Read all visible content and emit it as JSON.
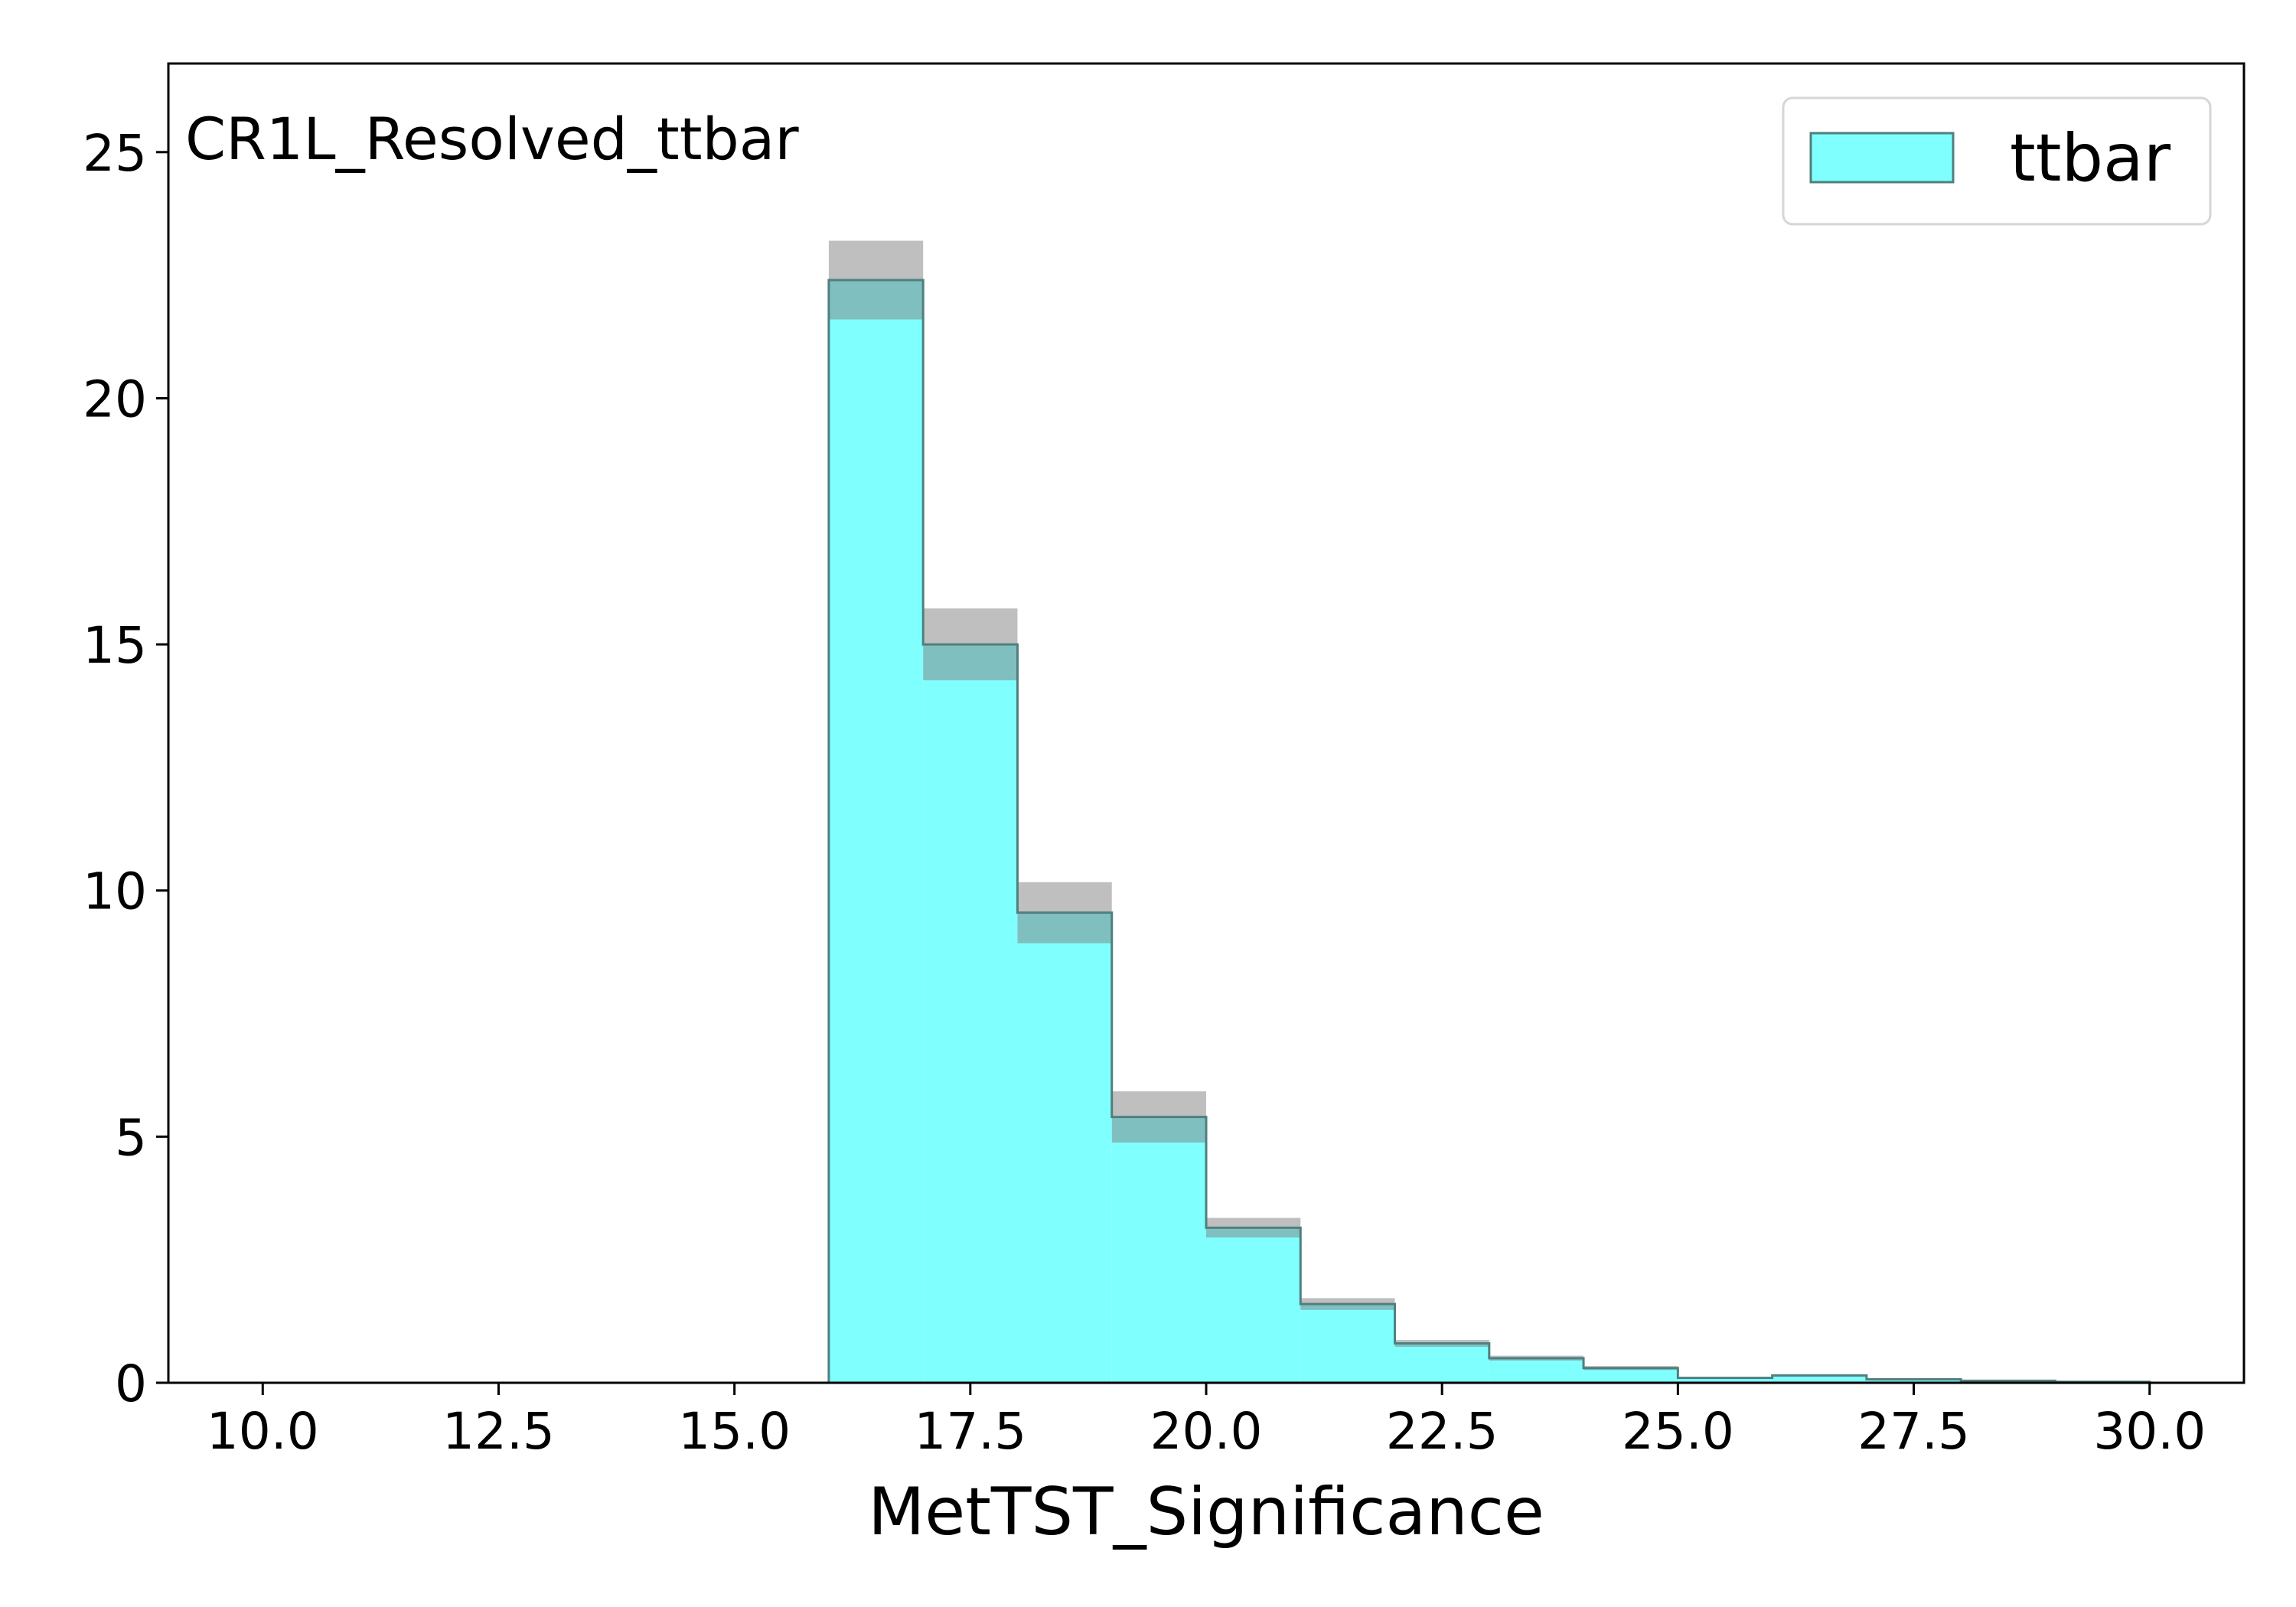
{
  "chart_data": {
    "type": "bar",
    "histogram": true,
    "annotation": "CR1L_Resolved_ttbar",
    "xlabel": "MetTST_Significance",
    "ylabel": "",
    "xlim": [
      9,
      31
    ],
    "ylim": [
      0,
      26.8
    ],
    "xticks": [
      "10.0",
      "12.5",
      "15.0",
      "17.5",
      "20.0",
      "22.5",
      "25.0",
      "27.5",
      "30.0"
    ],
    "yticks": [
      "0",
      "5",
      "10",
      "15",
      "20",
      "25"
    ],
    "legend": {
      "position": "top-right"
    },
    "bin_edges": [
      16,
      17,
      18,
      19,
      20,
      21,
      22,
      23,
      24,
      25,
      26,
      27,
      28,
      29,
      30
    ],
    "series": [
      {
        "name": "ttbar",
        "color": "#80ffff",
        "edge_color": "#4f7f7f",
        "values": [
          22.4,
          15.0,
          9.55,
          5.4,
          3.15,
          1.6,
          0.8,
          0.5,
          0.3,
          0.1,
          0.15,
          0.07,
          0.04,
          0.02
        ],
        "uncertainty": [
          0.8,
          0.73,
          0.62,
          0.52,
          0.2,
          0.12,
          0.07,
          0.05,
          0.04,
          0.02,
          0.02,
          0.015,
          0.01,
          0.01
        ]
      }
    ],
    "uncertainty_color": "#808080"
  }
}
